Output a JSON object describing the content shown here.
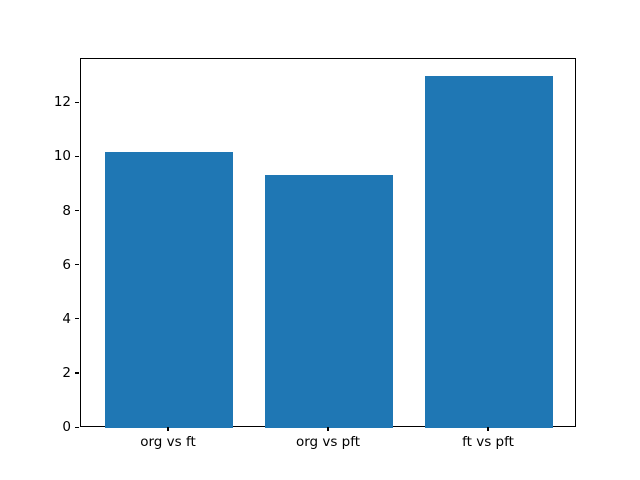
{
  "chart_data": {
    "type": "bar",
    "categories": [
      "org vs ft",
      "org vs pft",
      "ft vs pft"
    ],
    "values": [
      10.2,
      9.35,
      13.0
    ],
    "title": "",
    "xlabel": "",
    "ylabel": "",
    "ylim": [
      0,
      13.65
    ],
    "xlim": [
      -0.55,
      2.55
    ],
    "yticks": [
      0,
      2,
      4,
      6,
      8,
      10,
      12
    ],
    "bar_width": 0.8,
    "bar_color": "#1f77b4",
    "axis_color": "#000000",
    "background_color": "#ffffff",
    "grid": false,
    "legend": null
  }
}
